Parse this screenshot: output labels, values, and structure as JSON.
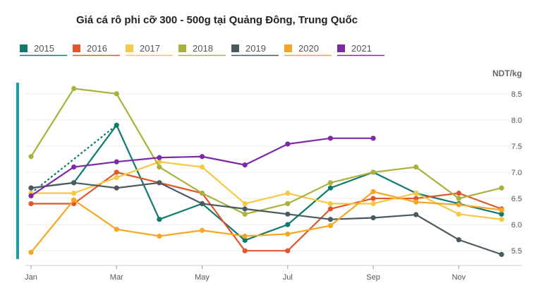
{
  "chart_data": {
    "type": "line",
    "title": "Giá cá rô phi cỡ 300 - 500g tại Quảng Đông, Trung Quốc",
    "ylabel": "NDT/kg",
    "xlabel": "",
    "x": [
      "Jan",
      "Feb",
      "Mar",
      "Apr",
      "May",
      "Jun",
      "Jul",
      "Aug",
      "Sep",
      "Oct",
      "Nov",
      "Dec"
    ],
    "x_tick_labels": [
      "Jan",
      "Mar",
      "May",
      "Jul",
      "Sep",
      "Nov"
    ],
    "y_tick_labels": [
      "5.5",
      "6.0",
      "6.5",
      "7.0",
      "7.5",
      "8.0",
      "8.5"
    ],
    "ylim": [
      5.3,
      8.7
    ],
    "grid": true,
    "legend_position": "top-left",
    "series": [
      {
        "name": "2015",
        "color": "#0f7a6e",
        "values": [
          6.7,
          6.8,
          7.9,
          6.1,
          6.4,
          5.7,
          6.0,
          6.7,
          7.0,
          6.6,
          6.4,
          6.2
        ]
      },
      {
        "name": "2016",
        "color": "#e2562a",
        "values": [
          6.4,
          6.4,
          7.0,
          6.8,
          6.6,
          5.5,
          5.5,
          6.3,
          6.5,
          6.5,
          6.6,
          6.3
        ]
      },
      {
        "name": "2017",
        "color": "#f7c843",
        "values": [
          6.6,
          6.6,
          6.9,
          7.2,
          7.1,
          6.4,
          6.6,
          6.4,
          6.4,
          6.6,
          6.2,
          6.1
        ]
      },
      {
        "name": "2018",
        "color": "#a9b23a",
        "values": [
          7.3,
          8.6,
          8.5,
          7.1,
          6.6,
          6.2,
          6.4,
          6.8,
          7.0,
          7.1,
          6.5,
          6.7
        ]
      },
      {
        "name": "2019",
        "color": "#4a5a60",
        "values": [
          6.7,
          6.8,
          6.7,
          6.8,
          6.4,
          6.3,
          6.2,
          6.1,
          6.13,
          6.19,
          5.71,
          5.43
        ]
      },
      {
        "name": "2020",
        "color": "#f5a623",
        "values": [
          5.47,
          6.47,
          5.91,
          5.78,
          5.89,
          5.78,
          5.82,
          5.98,
          6.63,
          6.43,
          6.38,
          6.28
        ]
      },
      {
        "name": "2021",
        "color": "#7e2aa8",
        "values": [
          6.55,
          7.1,
          7.2,
          7.28,
          7.3,
          7.14,
          7.54,
          7.65,
          7.65,
          null,
          null,
          null
        ]
      }
    ],
    "annotations": [
      {
        "type": "dashed-line",
        "color": "#0f7a6e",
        "from": [
          "Jan",
          6.6
        ],
        "to": [
          "Mar",
          7.9
        ]
      }
    ]
  }
}
